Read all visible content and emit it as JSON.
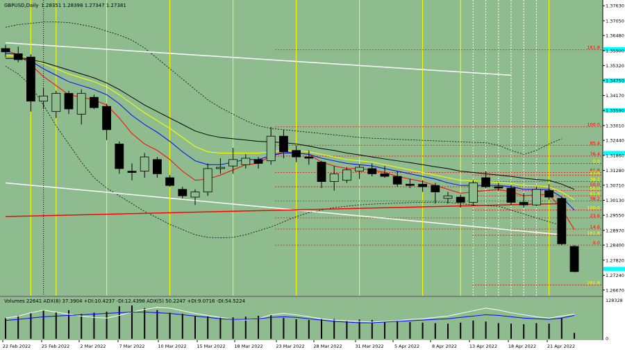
{
  "header": {
    "symbol": "GBPUSD,Daily",
    "ohlc": "1.28351 1.28398 1.27347 1.27381"
  },
  "indicator_header": "Volumes 22641  ADX(8) 37.3904 +DI:10.4237 -DI:12.4398  ADX(5) 50.2247 +DI:9.0716 -DI:54.5224",
  "colors": {
    "background": "#8fbc8f",
    "bull_candle": "#8fbc8f",
    "bear_candle": "#000000",
    "wick": "#000000",
    "grid": "#5a8a5a",
    "ma_fast": "#ff0000",
    "ma_blue": "#0000ff",
    "ma_yellow": "#ffff00",
    "ma_black": "#000000",
    "bollinger": "#000000",
    "channel": "#ffffff",
    "trendline": "#ff0000",
    "fib_line": "#ff0000",
    "fib_label": "#ff0000",
    "fib_label_alt": "#ffff00",
    "cyan_marker": "#00ffff",
    "date_vline": "#ffff00",
    "adx_white": "#ffffff",
    "adx_blue": "#0000ff"
  },
  "chart_data": {
    "type": "candlestick",
    "price_axis": {
      "labels": [
        "1.37630",
        "1.37050",
        "1.36480",
        "1.35900",
        "1.35320",
        "1.34750",
        "1.34170",
        "1.33590",
        "1.33010",
        "1.32440",
        "1.31860",
        "1.31280",
        "1.30710",
        "1.30130",
        "1.29550",
        "1.28970",
        "1.28400",
        "1.27820",
        "1.27240",
        "1.26670"
      ],
      "values": [
        1.3763,
        1.3705,
        1.3648,
        1.359,
        1.3532,
        1.3475,
        1.3417,
        1.3359,
        1.3301,
        1.3244,
        1.3186,
        1.3128,
        1.3071,
        1.3013,
        1.2955,
        1.2897,
        1.284,
        1.2782,
        1.2724,
        1.2667
      ],
      "range": [
        1.2645,
        1.3785
      ]
    },
    "date_axis": [
      "22 Feb 2022",
      "25 Feb 2022",
      "2 Mar 2022",
      "7 Mar 2022",
      "10 Mar 2022",
      "15 Mar 2022",
      "18 Mar 2022",
      "23 Mar 2022",
      "28 Mar 2022",
      "31 Mar 2022",
      "5 Apr 2022",
      "8 Apr 2022",
      "13 Apr 2022",
      "18 Apr 2022",
      "21 Apr 2022"
    ],
    "candles": [
      {
        "date": "2022-02-21",
        "open": 1.3598,
        "high": 1.3612,
        "low": 1.3565,
        "close": 1.3585
      },
      {
        "date": "2022-02-22",
        "open": 1.3578,
        "high": 1.3605,
        "low": 1.3545,
        "close": 1.3555
      },
      {
        "date": "2022-02-23",
        "open": 1.3565,
        "high": 1.3575,
        "low": 1.3355,
        "close": 1.3395
      },
      {
        "date": "2022-02-24",
        "open": 1.3395,
        "high": 1.3445,
        "low": 1.3365,
        "close": 1.3415
      },
      {
        "date": "2022-02-25",
        "open": 1.3355,
        "high": 1.3435,
        "low": 1.333,
        "close": 1.3425
      },
      {
        "date": "2022-02-28",
        "open": 1.3425,
        "high": 1.3435,
        "low": 1.3345,
        "close": 1.3365
      },
      {
        "date": "2022-03-01",
        "open": 1.3345,
        "high": 1.344,
        "low": 1.3305,
        "close": 1.3425
      },
      {
        "date": "2022-03-02",
        "open": 1.341,
        "high": 1.342,
        "low": 1.3365,
        "close": 1.337
      },
      {
        "date": "2022-03-03",
        "open": 1.3375,
        "high": 1.3385,
        "low": 1.3245,
        "close": 1.3285
      },
      {
        "date": "2022-03-04",
        "open": 1.323,
        "high": 1.324,
        "low": 1.3115,
        "close": 1.3135
      },
      {
        "date": "2022-03-07",
        "open": 1.3125,
        "high": 1.3155,
        "low": 1.309,
        "close": 1.312
      },
      {
        "date": "2022-03-08",
        "open": 1.3125,
        "high": 1.3195,
        "low": 1.31,
        "close": 1.318
      },
      {
        "date": "2022-03-09",
        "open": 1.317,
        "high": 1.318,
        "low": 1.31,
        "close": 1.3115
      },
      {
        "date": "2022-03-10",
        "open": 1.31,
        "high": 1.311,
        "low": 1.3065,
        "close": 1.307
      },
      {
        "date": "2022-03-11",
        "open": 1.3055,
        "high": 1.3065,
        "low": 1.302,
        "close": 1.303
      },
      {
        "date": "2022-03-14",
        "open": 1.3025,
        "high": 1.3055,
        "low": 1.2995,
        "close": 1.3045
      },
      {
        "date": "2022-03-15",
        "open": 1.3045,
        "high": 1.3155,
        "low": 1.303,
        "close": 1.3135
      },
      {
        "date": "2022-03-16",
        "open": 1.3135,
        "high": 1.3175,
        "low": 1.3115,
        "close": 1.314
      },
      {
        "date": "2022-03-17",
        "open": 1.3145,
        "high": 1.3215,
        "low": 1.3115,
        "close": 1.317
      },
      {
        "date": "2022-03-18",
        "open": 1.315,
        "high": 1.319,
        "low": 1.3135,
        "close": 1.3175
      },
      {
        "date": "2022-03-21",
        "open": 1.317,
        "high": 1.318,
        "low": 1.3135,
        "close": 1.3155
      },
      {
        "date": "2022-03-22",
        "open": 1.3165,
        "high": 1.3295,
        "low": 1.315,
        "close": 1.326
      },
      {
        "date": "2022-03-23",
        "open": 1.326,
        "high": 1.3285,
        "low": 1.3175,
        "close": 1.32
      },
      {
        "date": "2022-03-24",
        "open": 1.3205,
        "high": 1.3225,
        "low": 1.316,
        "close": 1.318
      },
      {
        "date": "2022-03-25",
        "open": 1.318,
        "high": 1.3205,
        "low": 1.315,
        "close": 1.3175
      },
      {
        "date": "2022-03-28",
        "open": 1.316,
        "high": 1.3165,
        "low": 1.306,
        "close": 1.3085
      },
      {
        "date": "2022-03-29",
        "open": 1.3085,
        "high": 1.3145,
        "low": 1.305,
        "close": 1.3115
      },
      {
        "date": "2022-03-30",
        "open": 1.309,
        "high": 1.314,
        "low": 1.308,
        "close": 1.313
      },
      {
        "date": "2022-03-31",
        "open": 1.3125,
        "high": 1.315,
        "low": 1.3095,
        "close": 1.314
      },
      {
        "date": "2022-04-01",
        "open": 1.3135,
        "high": 1.3155,
        "low": 1.3105,
        "close": 1.3115
      },
      {
        "date": "2022-04-04",
        "open": 1.3115,
        "high": 1.3145,
        "low": 1.31,
        "close": 1.3105
      },
      {
        "date": "2022-04-05",
        "open": 1.3105,
        "high": 1.3125,
        "low": 1.3065,
        "close": 1.3075
      },
      {
        "date": "2022-04-06",
        "open": 1.3075,
        "high": 1.3095,
        "low": 1.306,
        "close": 1.307
      },
      {
        "date": "2022-04-07",
        "open": 1.3075,
        "high": 1.309,
        "low": 1.3045,
        "close": 1.3065
      },
      {
        "date": "2022-04-08",
        "open": 1.307,
        "high": 1.308,
        "low": 1.3,
        "close": 1.3045
      },
      {
        "date": "2022-04-11",
        "open": 1.302,
        "high": 1.3045,
        "low": 1.3,
        "close": 1.303
      },
      {
        "date": "2022-04-12",
        "open": 1.3025,
        "high": 1.3035,
        "low": 1.2985,
        "close": 1.3005
      },
      {
        "date": "2022-04-13",
        "open": 1.3005,
        "high": 1.309,
        "low": 1.299,
        "close": 1.308
      },
      {
        "date": "2022-04-14",
        "open": 1.31,
        "high": 1.3125,
        "low": 1.306,
        "close": 1.3065
      },
      {
        "date": "2022-04-15",
        "open": 1.3065,
        "high": 1.308,
        "low": 1.305,
        "close": 1.306
      },
      {
        "date": "2022-04-18",
        "open": 1.306,
        "high": 1.307,
        "low": 1.2995,
        "close": 1.3005
      },
      {
        "date": "2022-04-19",
        "open": 1.3005,
        "high": 1.304,
        "low": 1.2985,
        "close": 1.2995
      },
      {
        "date": "2022-04-20",
        "open": 1.2995,
        "high": 1.3065,
        "low": 1.299,
        "close": 1.3055
      },
      {
        "date": "2022-04-21",
        "open": 1.305,
        "high": 1.3075,
        "low": 1.3015,
        "close": 1.3025
      },
      {
        "date": "2022-04-22",
        "open": 1.302,
        "high": 1.3025,
        "low": 1.284,
        "close": 1.2845
      },
      {
        "date": "2022-04-25",
        "open": 1.2835,
        "high": 1.284,
        "low": 1.2735,
        "close": 1.2738
      }
    ],
    "moving_averages": [
      {
        "color": "#ff0000",
        "values": [
          1.359,
          1.3575,
          1.3535,
          1.349,
          1.3455,
          1.342,
          1.341,
          1.34,
          1.338,
          1.333,
          1.327,
          1.323,
          1.3205,
          1.317,
          1.3125,
          1.309,
          1.3095,
          1.311,
          1.313,
          1.315,
          1.3155,
          1.3185,
          1.32,
          1.3195,
          1.319,
          1.316,
          1.3145,
          1.3135,
          1.3135,
          1.313,
          1.312,
          1.3105,
          1.3095,
          1.3085,
          1.307,
          1.3055,
          1.304,
          1.3045,
          1.305,
          1.3055,
          1.3045,
          1.303,
          1.3035,
          1.3035,
          1.298,
          1.29
        ]
      },
      {
        "color": "#0000ff",
        "values": [
          1.358,
          1.3575,
          1.355,
          1.352,
          1.3495,
          1.347,
          1.3455,
          1.344,
          1.342,
          1.3385,
          1.334,
          1.3305,
          1.3275,
          1.324,
          1.32,
          1.3165,
          1.315,
          1.315,
          1.316,
          1.317,
          1.317,
          1.3185,
          1.3195,
          1.3195,
          1.319,
          1.3175,
          1.3165,
          1.3155,
          1.315,
          1.3145,
          1.3135,
          1.3125,
          1.3115,
          1.3105,
          1.3095,
          1.308,
          1.307,
          1.307,
          1.307,
          1.307,
          1.3065,
          1.3055,
          1.3055,
          1.3055,
          1.3025,
          1.2975
        ]
      },
      {
        "color": "#ffff00",
        "values": [
          1.357,
          1.357,
          1.356,
          1.354,
          1.352,
          1.35,
          1.3485,
          1.347,
          1.345,
          1.342,
          1.3385,
          1.335,
          1.332,
          1.329,
          1.3255,
          1.322,
          1.32,
          1.3195,
          1.3195,
          1.3195,
          1.3195,
          1.32,
          1.3205,
          1.3205,
          1.32,
          1.319,
          1.318,
          1.317,
          1.3165,
          1.316,
          1.315,
          1.314,
          1.313,
          1.312,
          1.311,
          1.31,
          1.309,
          1.3088,
          1.3085,
          1.3082,
          1.3078,
          1.307,
          1.3068,
          1.3065,
          1.3045,
          1.3015
        ]
      },
      {
        "color": "#000000",
        "values": [
          1.356,
          1.356,
          1.3555,
          1.3545,
          1.353,
          1.3515,
          1.35,
          1.3485,
          1.3465,
          1.344,
          1.341,
          1.338,
          1.3355,
          1.333,
          1.3305,
          1.328,
          1.3265,
          1.3255,
          1.325,
          1.3245,
          1.324,
          1.3238,
          1.3235,
          1.323,
          1.3222,
          1.3212,
          1.3205,
          1.3195,
          1.3188,
          1.318,
          1.3172,
          1.3165,
          1.3158,
          1.315,
          1.3142,
          1.3135,
          1.3125,
          1.312,
          1.3115,
          1.311,
          1.3105,
          1.3098,
          1.3093,
          1.309,
          1.3075,
          1.3055
        ]
      }
    ],
    "bollinger_upper": [
      1.368,
      1.369,
      1.3695,
      1.37,
      1.37,
      1.3698,
      1.369,
      1.368,
      1.3665,
      1.365,
      1.363,
      1.36,
      1.356,
      1.352,
      1.348,
      1.344,
      1.34,
      1.337,
      1.3345,
      1.332,
      1.33,
      1.329,
      1.3285,
      1.328,
      1.3275,
      1.327,
      1.3265,
      1.326,
      1.3255,
      1.3252,
      1.325,
      1.3248,
      1.3246,
      1.3244,
      1.3242,
      1.324,
      1.3238,
      1.3236,
      1.3235,
      1.3225,
      1.3205,
      1.319,
      1.3205,
      1.323,
      1.325
    ],
    "bollinger_lower": [
      1.353,
      1.35,
      1.3455,
      1.338,
      1.33,
      1.323,
      1.316,
      1.31,
      1.306,
      1.303,
      1.3,
      1.297,
      1.2945,
      1.292,
      1.29,
      1.288,
      1.287,
      1.2868,
      1.287,
      1.288,
      1.2895,
      1.291,
      1.293,
      1.295,
      1.2965,
      1.2975,
      1.2985,
      1.299,
      1.2995,
      1.2998,
      1.3,
      1.3002,
      1.3004,
      1.3005,
      1.3006,
      1.3005,
      1.3,
      1.2995,
      1.2992,
      1.299,
      1.2975,
      1.296,
      1.2945,
      1.293,
      1.2915
    ],
    "channel_lines": [
      {
        "from": {
          "date": "2022-02-21",
          "price": 1.362
        },
        "to": {
          "date": "2022-04-18",
          "price": 1.3495
        }
      },
      {
        "from": {
          "date": "2022-02-21",
          "price": 1.308
        },
        "to": {
          "date": "2022-04-22",
          "price": 1.288
        }
      }
    ],
    "trendline": {
      "from": {
        "date": "2022-02-21",
        "price": 1.295
      },
      "to": {
        "date": "2022-04-22",
        "price": 1.3
      }
    },
    "fib_levels": [
      {
        "label": "161.8",
        "price": 1.3593,
        "color": "#ff0000"
      },
      {
        "label": "100.0",
        "price": 1.3296,
        "color": "#ff0000"
      },
      {
        "label": "85.4",
        "price": 1.3225,
        "color": "#ff0000"
      },
      {
        "label": "76.4",
        "price": 1.3183,
        "color": "#ff0000"
      },
      {
        "label": "0.0",
        "price": 1.3155,
        "color": "#ffff00"
      },
      {
        "label": "61.8",
        "price": 1.312,
        "color": "#ff0000"
      },
      {
        "label": "23.6",
        "price": 1.311,
        "color": "#ffff00"
      },
      {
        "label": "38.2",
        "price": 1.3085,
        "color": "#ffff00"
      },
      {
        "label": "50.0",
        "price": 1.3065,
        "color": "#ff0000"
      },
      {
        "label": "50.0",
        "price": 1.305,
        "color": "#ffff00"
      },
      {
        "label": "61.8",
        "price": 1.303,
        "color": "#ffff00"
      },
      {
        "label": "38.2",
        "price": 1.301,
        "color": "#ff0000"
      },
      {
        "label": "100.0",
        "price": 1.2975,
        "color": "#ffff00"
      },
      {
        "label": "23.6",
        "price": 1.2945,
        "color": "#ff0000"
      },
      {
        "label": "14.6",
        "price": 1.2902,
        "color": "#ff0000"
      },
      {
        "label": "161.8",
        "price": 1.2878,
        "color": "#ffff00"
      },
      {
        "label": "0.0",
        "price": 1.284,
        "color": "#ff0000"
      },
      {
        "label": "261.8",
        "price": 1.2686,
        "color": "#ffff00"
      }
    ],
    "cyan_markers": [
      1.3595,
      1.3475,
      1.336,
      1.3195,
      1.2748
    ],
    "date_vlines": {
      "yellow": [
        "2022-02-23",
        "2022-02-25",
        "2022-03-03",
        "2022-03-10",
        "2022-03-17",
        "2022-03-24",
        "2022-03-31",
        "2022-04-07",
        "2022-04-12",
        "2022-04-21"
      ],
      "white_dotted": [
        "2022-04-13",
        "2022-04-14",
        "2022-04-15",
        "2022-04-18",
        "2022-04-19",
        "2022-04-20"
      ],
      "black_dotted": [
        "2022-02-24"
      ]
    },
    "volume_axis": {
      "max_label": "128328",
      "min_label": "0",
      "max": 128328
    },
    "volumes": [
      80000,
      90000,
      98000,
      112000,
      102000,
      110000,
      95000,
      100000,
      104000,
      125000,
      128000,
      118000,
      110000,
      100000,
      96000,
      88000,
      86000,
      84000,
      82000,
      85000,
      88000,
      92000,
      80000,
      75000,
      72000,
      78000,
      76000,
      70000,
      74000,
      72000,
      68000,
      66000,
      64000,
      62000,
      60000,
      58000,
      62000,
      70000,
      66000,
      60000,
      58000,
      56000,
      60000,
      58000,
      80000,
      22641
    ],
    "adx_lines": [
      {
        "color": "#ffffff",
        "values": [
          62,
          68,
          78,
          86,
          80,
          74,
          68,
          64,
          62,
          70,
          80,
          88,
          94,
          92,
          84,
          76,
          70,
          64,
          58,
          56,
          60,
          72,
          76,
          72,
          66,
          60,
          56,
          54,
          52,
          50,
          52,
          54,
          58,
          60,
          64,
          68,
          76,
          84,
          92,
          86,
          78,
          72,
          66,
          62,
          68,
          74
        ]
      },
      {
        "color": "#0000ff",
        "values": [
          55,
          58,
          62,
          66,
          68,
          70,
          72,
          74,
          76,
          78,
          80,
          80,
          78,
          76,
          72,
          68,
          64,
          60,
          58,
          58,
          60,
          64,
          66,
          64,
          60,
          56,
          52,
          50,
          48,
          48,
          50,
          52,
          54,
          56,
          58,
          60,
          64,
          68,
          72,
          70,
          66,
          62,
          60,
          58,
          62,
          70
        ]
      }
    ]
  }
}
